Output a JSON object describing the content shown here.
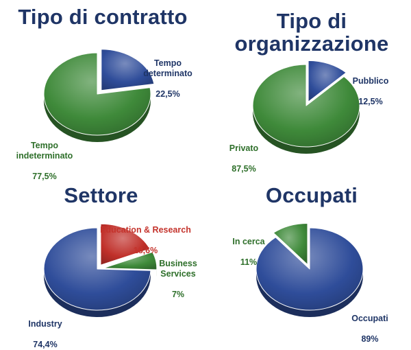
{
  "colors": {
    "title": "#1f3566",
    "blue": "#2f4d9a",
    "green": "#3f8a3a",
    "red": "#c0302a",
    "label_blue": "#1f3566",
    "label_green": "#2e6f2a",
    "label_red": "#c4332c"
  },
  "chart_data": [
    {
      "type": "pie",
      "title": "Tipo di contratto",
      "slices": [
        {
          "label": "Tempo\ndeterminato",
          "value": 22.5,
          "value_text": "22,5%",
          "color": "blue",
          "exploded": true
        },
        {
          "label": "Tempo\nindeterminato",
          "value": 77.5,
          "value_text": "77,5%",
          "color": "green",
          "exploded": false
        }
      ]
    },
    {
      "type": "pie",
      "title": "Tipo di\norganizzazione",
      "slices": [
        {
          "label": "Pubblico",
          "value": 12.5,
          "value_text": "12,5%",
          "color": "blue",
          "exploded": true
        },
        {
          "label": "Privato",
          "value": 87.5,
          "value_text": "87,5%",
          "color": "green",
          "exploded": false
        }
      ]
    },
    {
      "type": "pie",
      "title": "Settore",
      "slices": [
        {
          "label": "Education & Research",
          "value": 18.6,
          "value_text": "18,6%",
          "color": "red",
          "exploded": true
        },
        {
          "label": "Business\nServices",
          "value": 7,
          "value_text": "7%",
          "color": "green",
          "exploded": true
        },
        {
          "label": "Industry",
          "value": 74.4,
          "value_text": "74,4%",
          "color": "blue",
          "exploded": false
        }
      ]
    },
    {
      "type": "pie",
      "title": "Occupati",
      "slices": [
        {
          "label": "Occupati",
          "value": 89,
          "value_text": "89%",
          "color": "blue",
          "exploded": false
        },
        {
          "label": "In cerca",
          "value": 11,
          "value_text": "11%",
          "color": "green",
          "exploded": true
        }
      ]
    }
  ]
}
